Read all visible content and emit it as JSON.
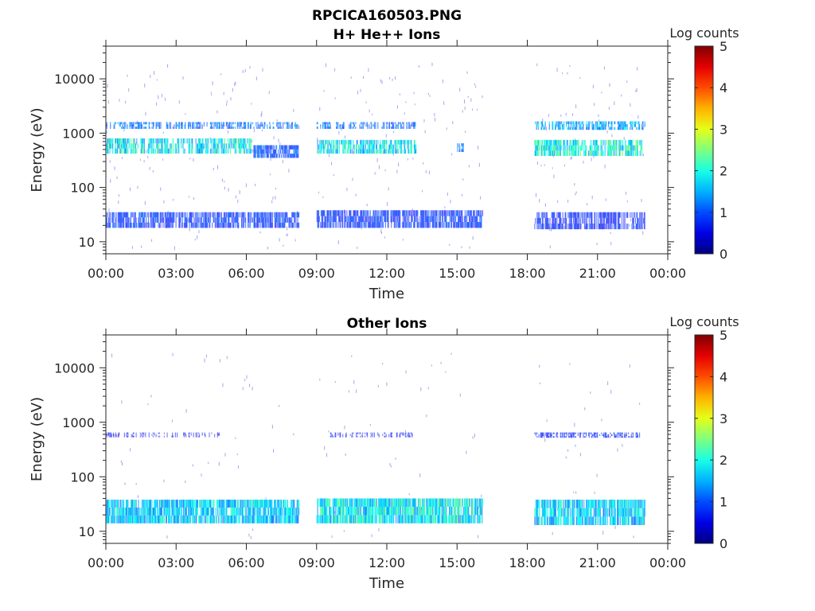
{
  "chart_data": [
    {
      "type": "heatmap",
      "title_main": "RPCICA160503.PNG",
      "title": "H+ He++ Ions",
      "xlabel": "Time",
      "ylabel": "Energy (eV)",
      "yscale": "log",
      "ylim": [
        6,
        40000
      ],
      "yticks": [
        "10",
        "100",
        "1000",
        "10000"
      ],
      "yticks_values": [
        10,
        100,
        1000,
        10000
      ],
      "xlim_hours": [
        0,
        24
      ],
      "xticks": [
        "00:00",
        "03:00",
        "06:00",
        "09:00",
        "12:00",
        "15:00",
        "18:00",
        "21:00",
        "00:00"
      ],
      "colorbar": {
        "label": "Log counts",
        "range": [
          0,
          5
        ],
        "ticks": [
          "0",
          "1",
          "2",
          "3",
          "4",
          "5"
        ]
      },
      "data_segments_hours": [
        [
          0,
          8.25
        ],
        [
          9.0,
          16.08
        ],
        [
          18.3,
          23.0
        ]
      ],
      "bands": [
        {
          "t": [
            0,
            8.25
          ],
          "e": [
            1200,
            1600
          ],
          "log_counts": 1.2,
          "density": 0.5
        },
        {
          "t": [
            9.0,
            13.3
          ],
          "e": [
            1200,
            1600
          ],
          "log_counts": 1.2,
          "density": 0.5
        },
        {
          "t": [
            18.3,
            23.0
          ],
          "e": [
            1150,
            1650
          ],
          "log_counts": 1.5,
          "density": 0.6
        },
        {
          "t": [
            0,
            6.2
          ],
          "e": [
            420,
            800
          ],
          "log_counts": 1.9,
          "density": 0.6
        },
        {
          "t": [
            6.3,
            8.25
          ],
          "e": [
            350,
            600
          ],
          "log_counts": 1.0,
          "density": 0.95
        },
        {
          "t": [
            9.0,
            13.3
          ],
          "e": [
            420,
            750
          ],
          "log_counts": 1.9,
          "density": 0.7
        },
        {
          "t": [
            15.0,
            15.3
          ],
          "e": [
            450,
            650
          ],
          "log_counts": 1.3,
          "density": 0.4
        },
        {
          "t": [
            18.3,
            22.9
          ],
          "e": [
            380,
            750
          ],
          "log_counts": 2.0,
          "density": 0.75
        },
        {
          "t": [
            0,
            8.25
          ],
          "e": [
            18,
            35
          ],
          "log_counts": 0.9,
          "density": 0.8
        },
        {
          "t": [
            9.0,
            16.08
          ],
          "e": [
            18,
            38
          ],
          "log_counts": 0.9,
          "density": 0.85
        },
        {
          "t": [
            18.3,
            23.0
          ],
          "e": [
            17,
            35
          ],
          "log_counts": 0.8,
          "density": 0.7
        }
      ],
      "background_log_counts": 0.4,
      "background_density": 0.35
    },
    {
      "type": "heatmap",
      "title": "Other Ions",
      "xlabel": "Time",
      "ylabel": "Energy (eV)",
      "yscale": "log",
      "ylim": [
        6,
        40000
      ],
      "yticks": [
        "10",
        "100",
        "1000",
        "10000"
      ],
      "yticks_values": [
        10,
        100,
        1000,
        10000
      ],
      "xlim_hours": [
        0,
        24
      ],
      "xticks": [
        "00:00",
        "03:00",
        "06:00",
        "09:00",
        "12:00",
        "15:00",
        "18:00",
        "21:00",
        "00:00"
      ],
      "colorbar": {
        "label": "Log counts",
        "range": [
          0,
          5
        ],
        "ticks": [
          "0",
          "1",
          "2",
          "3",
          "4",
          "5"
        ]
      },
      "data_segments_hours": [
        [
          0,
          8.25
        ],
        [
          9.0,
          16.08
        ],
        [
          18.3,
          23.0
        ]
      ],
      "bands": [
        {
          "t": [
            0,
            5.0
          ],
          "e": [
            530,
            650
          ],
          "log_counts": 0.6,
          "density": 0.3
        },
        {
          "t": [
            9.5,
            13.3
          ],
          "e": [
            530,
            650
          ],
          "log_counts": 0.7,
          "density": 0.4
        },
        {
          "t": [
            18.3,
            22.8
          ],
          "e": [
            520,
            650
          ],
          "log_counts": 0.8,
          "density": 0.6
        },
        {
          "t": [
            0,
            8.25
          ],
          "e": [
            14,
            38
          ],
          "log_counts": 1.7,
          "density": 0.95
        },
        {
          "t": [
            9.0,
            16.08
          ],
          "e": [
            14,
            40
          ],
          "log_counts": 1.9,
          "density": 0.95
        },
        {
          "t": [
            18.3,
            23.0
          ],
          "e": [
            13,
            38
          ],
          "log_counts": 1.7,
          "density": 0.9
        }
      ],
      "background_log_counts": 0.3,
      "background_density": 0.12
    }
  ]
}
